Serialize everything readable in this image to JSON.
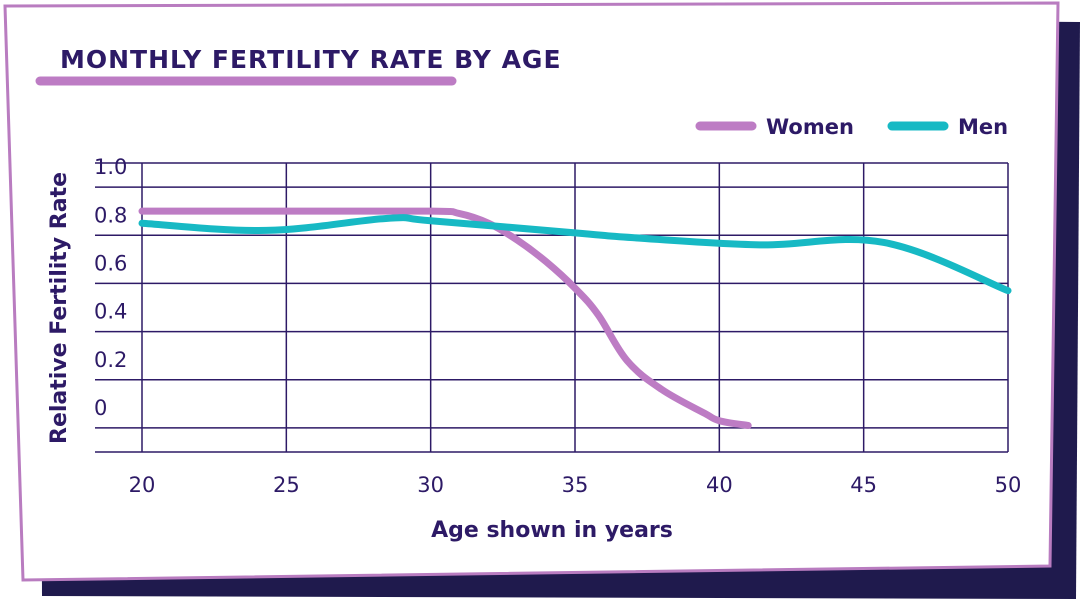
{
  "colors": {
    "navy": "#1f1a4d",
    "frame_border": "#b97cc0",
    "grid": "#2d1a66",
    "women": "#bd7cc4",
    "men": "#17b9c4",
    "text": "#2d1a66"
  },
  "chart_data": {
    "type": "line",
    "title": "MONTHLY FERTILITY RATE BY AGE",
    "xlabel": "Age shown in years",
    "ylabel": "Relative Fertility Rate",
    "xlim": [
      20,
      50
    ],
    "ylim": [
      -0.1,
      1.1
    ],
    "grid": true,
    "legend_position": "top-right",
    "x_ticks": [
      20,
      25,
      30,
      35,
      40,
      45,
      50
    ],
    "x_tick_labels": [
      "20",
      "25",
      "30",
      "35",
      "40",
      "45",
      "50"
    ],
    "y_ticks": [
      1.0,
      0.8,
      0.6,
      0.4,
      0.2,
      0
    ],
    "y_tick_labels": [
      "1.0",
      "0.8",
      "0.6",
      "0.4",
      "0.2",
      "0"
    ],
    "series": [
      {
        "name": "Women",
        "x": [
          20,
          25,
          30,
          31,
          32,
          33,
          34,
          35,
          35.8,
          36.8,
          38,
          39.5,
          40,
          41
        ],
        "y": [
          0.9,
          0.9,
          0.9,
          0.89,
          0.85,
          0.78,
          0.69,
          0.58,
          0.47,
          0.28,
          0.16,
          0.06,
          0.03,
          0.01
        ]
      },
      {
        "name": "Men",
        "x": [
          20,
          24.3,
          28.5,
          30,
          35,
          37,
          41.4,
          45.7,
          50
        ],
        "y": [
          0.85,
          0.82,
          0.87,
          0.86,
          0.81,
          0.79,
          0.76,
          0.77,
          0.57
        ]
      }
    ]
  }
}
